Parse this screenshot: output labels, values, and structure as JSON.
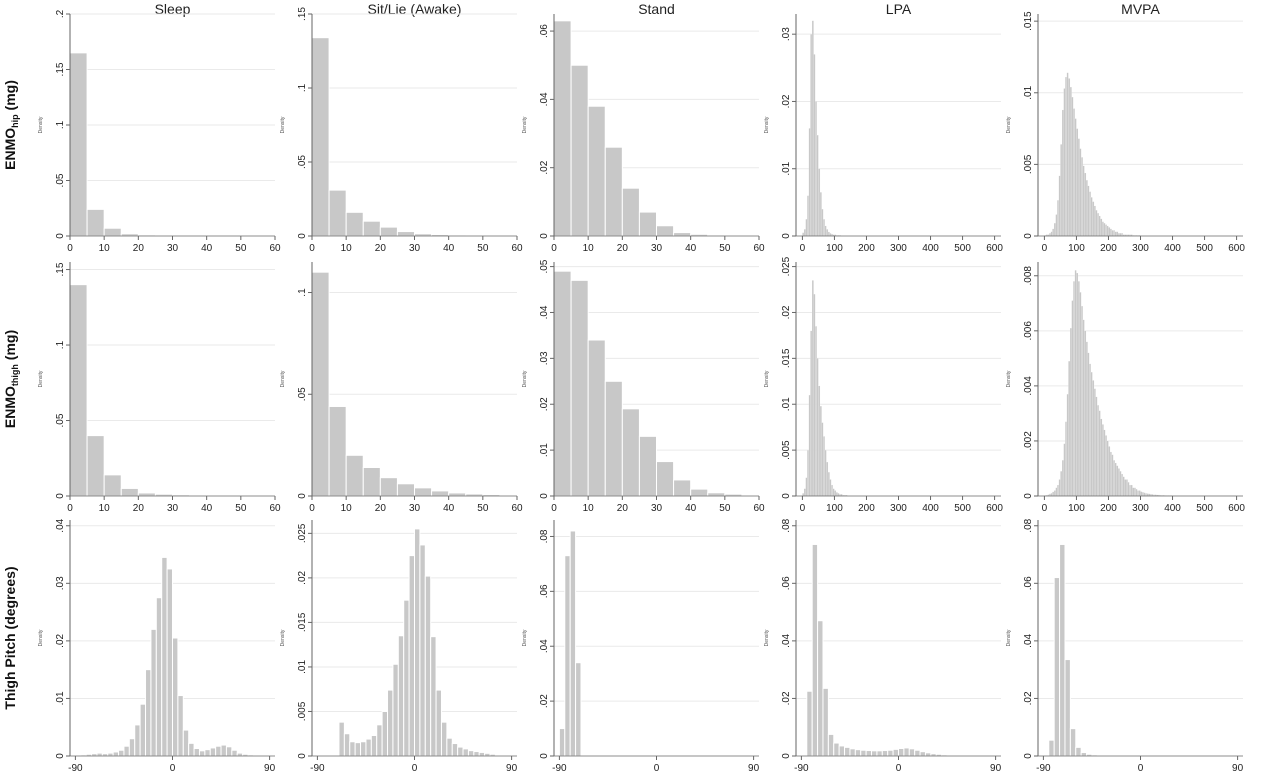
{
  "columns": [
    "Sleep",
    "Sit/Lie (Awake)",
    "Stand",
    "LPA",
    "MVPA"
  ],
  "rows": [
    {
      "label_main": "ENMO",
      "label_sub": "hip",
      "label_unit": " (mg)"
    },
    {
      "label_main": "ENMO",
      "label_sub": "thigh",
      "label_unit": " (mg)"
    },
    {
      "label_main": "Thigh Pitch (degrees)",
      "label_sub": "",
      "label_unit": ""
    }
  ],
  "density_label": "Density",
  "colors": {
    "bar": "#c8c8c8",
    "bar_edge": "#ffffff",
    "grid": "#eaeaea",
    "axis": "#666666"
  },
  "chart_data": [
    {
      "type": "bar",
      "row": 0,
      "col": 0,
      "xlim": [
        0,
        60
      ],
      "xticks": [
        "0",
        "10",
        "20",
        "30",
        "40",
        "50",
        "60"
      ],
      "ylim": [
        0,
        0.2
      ],
      "yticks": [
        "0",
        ".05",
        ".1",
        ".15",
        ".2"
      ],
      "bins": {
        "start": 0,
        "width": 5,
        "values": [
          0.165,
          0.024,
          0.007,
          0.002,
          0.001,
          0.0005,
          0.0004,
          0.0003,
          0.0002,
          0.0002,
          0.0001,
          0.0001
        ]
      }
    },
    {
      "type": "bar",
      "row": 0,
      "col": 1,
      "xlim": [
        0,
        60
      ],
      "xticks": [
        "0",
        "10",
        "20",
        "30",
        "40",
        "50",
        "60"
      ],
      "ylim": [
        0,
        0.15
      ],
      "yticks": [
        "0",
        ".05",
        ".1",
        ".15"
      ],
      "bins": {
        "start": 0,
        "width": 5,
        "values": [
          0.134,
          0.031,
          0.016,
          0.01,
          0.006,
          0.003,
          0.0015,
          0.001,
          0.0007,
          0.0005,
          0.0003,
          0.0002
        ]
      }
    },
    {
      "type": "bar",
      "row": 0,
      "col": 2,
      "xlim": [
        0,
        60
      ],
      "xticks": [
        "0",
        "10",
        "20",
        "30",
        "40",
        "50",
        "60"
      ],
      "ylim": [
        0,
        0.065
      ],
      "yticks": [
        "0",
        ".02",
        ".04",
        ".06"
      ],
      "bins": {
        "start": 0,
        "width": 5,
        "values": [
          0.063,
          0.05,
          0.038,
          0.026,
          0.014,
          0.007,
          0.003,
          0.001,
          0.0005,
          0.0003,
          0.0002,
          0.0001
        ]
      }
    },
    {
      "type": "bar",
      "row": 0,
      "col": 3,
      "xlim": [
        -20,
        620
      ],
      "xticks": [
        "0",
        "100",
        "200",
        "300",
        "400",
        "500",
        "600"
      ],
      "ylim": [
        0,
        0.033
      ],
      "yticks": [
        "0",
        ".01",
        ".02",
        ".03"
      ],
      "bins": {
        "start": 0,
        "width": 5,
        "values": [
          0.0005,
          0.001,
          0.0025,
          0.006,
          0.016,
          0.03,
          0.032,
          0.027,
          0.02,
          0.015,
          0.01,
          0.0065,
          0.004,
          0.0025,
          0.0015,
          0.001,
          0.0006,
          0.0004,
          0.0003,
          0.0002,
          0.0002,
          0.0001,
          0.0001,
          0.0001
        ]
      }
    },
    {
      "type": "bar",
      "row": 0,
      "col": 4,
      "xlim": [
        -20,
        620
      ],
      "xticks": [
        "0",
        "100",
        "200",
        "300",
        "400",
        "500",
        "600"
      ],
      "ylim": [
        0,
        0.0155
      ],
      "yticks": [
        "0",
        ".005",
        ".01",
        ".015"
      ],
      "bins": {
        "start": 0,
        "width": 5,
        "values": [
          5e-05,
          0.0001,
          0.0001,
          0.0002,
          0.0003,
          0.0005,
          0.0009,
          0.0015,
          0.0025,
          0.0042,
          0.0064,
          0.0088,
          0.0103,
          0.0111,
          0.0114,
          0.011,
          0.0104,
          0.0097,
          0.0089,
          0.0082,
          0.0075,
          0.0068,
          0.0061,
          0.0055,
          0.0049,
          0.0044,
          0.0039,
          0.0035,
          0.0031,
          0.0027,
          0.0024,
          0.0021,
          0.0018,
          0.0016,
          0.0014,
          0.0012,
          0.001,
          0.0009,
          0.0008,
          0.0007,
          0.0006,
          0.0005,
          0.0004,
          0.0004,
          0.0003,
          0.0003,
          0.0002,
          0.0002,
          0.0002,
          0.0001,
          0.0001,
          0.0001,
          0.0001,
          0.0001,
          0.0001,
          5e-05,
          5e-05,
          5e-05,
          5e-05,
          5e-05
        ]
      }
    },
    {
      "type": "bar",
      "row": 1,
      "col": 0,
      "xlim": [
        0,
        60
      ],
      "xticks": [
        "0",
        "10",
        "20",
        "30",
        "40",
        "50",
        "60"
      ],
      "ylim": [
        0,
        0.155
      ],
      "yticks": [
        "0",
        ".05",
        ".1",
        ".15"
      ],
      "bins": {
        "start": 0,
        "width": 5,
        "values": [
          0.14,
          0.04,
          0.014,
          0.005,
          0.002,
          0.0012,
          0.0008,
          0.0005,
          0.0004,
          0.0003,
          0.0002,
          0.0001
        ]
      }
    },
    {
      "type": "bar",
      "row": 1,
      "col": 1,
      "xlim": [
        0,
        60
      ],
      "xticks": [
        "0",
        "10",
        "20",
        "30",
        "40",
        "50",
        "60"
      ],
      "ylim": [
        0,
        0.115
      ],
      "yticks": [
        "0",
        ".05",
        ".1"
      ],
      "bins": {
        "start": 0,
        "width": 5,
        "values": [
          0.11,
          0.044,
          0.02,
          0.014,
          0.009,
          0.006,
          0.004,
          0.0025,
          0.0015,
          0.001,
          0.0007,
          0.0004
        ]
      }
    },
    {
      "type": "bar",
      "row": 1,
      "col": 2,
      "xlim": [
        0,
        60
      ],
      "xticks": [
        "0",
        "10",
        "20",
        "30",
        "40",
        "50",
        "60"
      ],
      "ylim": [
        0,
        0.051
      ],
      "yticks": [
        "0",
        ".01",
        ".02",
        ".03",
        ".04",
        ".05"
      ],
      "bins": {
        "start": 0,
        "width": 5,
        "values": [
          0.049,
          0.047,
          0.034,
          0.025,
          0.019,
          0.013,
          0.0075,
          0.0035,
          0.0015,
          0.0007,
          0.0004,
          0.0002
        ]
      }
    },
    {
      "type": "bar",
      "row": 1,
      "col": 3,
      "xlim": [
        -20,
        620
      ],
      "xticks": [
        "0",
        "100",
        "200",
        "300",
        "400",
        "500",
        "600"
      ],
      "ylim": [
        0,
        0.0255
      ],
      "yticks": [
        "0",
        ".005",
        ".01",
        ".015",
        ".02",
        ".025"
      ],
      "bins": {
        "start": 0,
        "width": 5,
        "values": [
          0.0003,
          0.0008,
          0.002,
          0.005,
          0.011,
          0.018,
          0.0235,
          0.022,
          0.0185,
          0.015,
          0.012,
          0.0098,
          0.008,
          0.0065,
          0.005,
          0.0037,
          0.0026,
          0.0018,
          0.0012,
          0.0008,
          0.0006,
          0.0004,
          0.0003,
          0.0002,
          0.0002,
          0.0001,
          0.0001,
          0.0001
        ]
      }
    },
    {
      "type": "bar",
      "row": 1,
      "col": 4,
      "xlim": [
        -20,
        620
      ],
      "xticks": [
        "0",
        "100",
        "200",
        "300",
        "400",
        "500",
        "600"
      ],
      "ylim": [
        0,
        0.0085
      ],
      "yticks": [
        "0",
        ".002",
        ".004",
        ".006",
        ".008"
      ],
      "bins": {
        "start": 0,
        "width": 5,
        "values": [
          2e-05,
          3e-05,
          5e-05,
          8e-05,
          0.0001,
          0.00015,
          0.0002,
          0.0003,
          0.0004,
          0.0006,
          0.0009,
          0.0013,
          0.0019,
          0.0027,
          0.0037,
          0.0049,
          0.0061,
          0.0071,
          0.0078,
          0.0082,
          0.0081,
          0.0078,
          0.0074,
          0.0069,
          0.0064,
          0.006,
          0.0056,
          0.0052,
          0.0048,
          0.0045,
          0.0042,
          0.0039,
          0.0036,
          0.0033,
          0.0031,
          0.0028,
          0.0026,
          0.0024,
          0.0022,
          0.002,
          0.0018,
          0.0016,
          0.0015,
          0.0013,
          0.0012,
          0.0011,
          0.001,
          0.0009,
          0.0008,
          0.0007,
          0.0006,
          0.0006,
          0.0005,
          0.0004,
          0.0004,
          0.0003,
          0.0003,
          0.00025,
          0.0002,
          0.0002,
          0.00016,
          0.00014,
          0.00012,
          0.0001,
          9e-05,
          8e-05,
          7e-05,
          6e-05,
          5e-05,
          5e-05,
          4e-05,
          4e-05,
          3e-05,
          3e-05,
          3e-05,
          2e-05,
          2e-05,
          2e-05,
          2e-05,
          2e-05,
          1e-05,
          1e-05,
          1e-05,
          1e-05,
          1e-05,
          1e-05,
          1e-05,
          1e-05,
          1e-05,
          1e-05,
          1e-05,
          1e-05,
          1e-05,
          1e-05,
          1e-05,
          1e-05,
          1e-05,
          1e-05,
          1e-05,
          1e-05,
          1e-05,
          1e-05,
          1e-05,
          1e-05,
          1e-05,
          1e-05,
          1e-05,
          1e-05,
          1e-05,
          1e-05,
          1e-05,
          1e-05,
          1e-05,
          1e-05,
          1e-05,
          1e-05,
          1e-05,
          1e-05,
          1e-05,
          1e-05
        ]
      }
    },
    {
      "type": "bar",
      "row": 2,
      "col": 0,
      "xlim": [
        -95,
        95
      ],
      "xticks": [
        "-90",
        "0",
        "90"
      ],
      "ylim": [
        0,
        0.041
      ],
      "yticks": [
        "0",
        ".01",
        ".02",
        ".03",
        ".04"
      ],
      "bins": {
        "start": -90,
        "width": 5,
        "values": [
          0.0001,
          0.0002,
          0.0003,
          0.0004,
          0.0005,
          0.0004,
          0.0005,
          0.0007,
          0.001,
          0.0017,
          0.003,
          0.0054,
          0.009,
          0.015,
          0.022,
          0.0275,
          0.0345,
          0.0325,
          0.0205,
          0.0105,
          0.0045,
          0.0022,
          0.0013,
          0.0009,
          0.0011,
          0.0014,
          0.0017,
          0.0019,
          0.0016,
          0.001,
          0.0005,
          0.0003,
          0.0002,
          0.0001,
          0.0001,
          0.0001
        ]
      }
    },
    {
      "type": "bar",
      "row": 2,
      "col": 1,
      "xlim": [
        -95,
        95
      ],
      "xticks": [
        "-90",
        "0",
        "90"
      ],
      "ylim": [
        0,
        0.0265
      ],
      "yticks": [
        "0",
        ".005",
        ".01",
        ".015",
        ".02",
        ".025"
      ],
      "bins": {
        "start": -70,
        "width": 5,
        "values": [
          0.0038,
          0.0025,
          0.0016,
          0.0015,
          0.0016,
          0.0019,
          0.0023,
          0.0035,
          0.005,
          0.0074,
          0.0103,
          0.0135,
          0.0175,
          0.0225,
          0.0255,
          0.0237,
          0.0202,
          0.0134,
          0.0074,
          0.0038,
          0.002,
          0.0014,
          0.001,
          0.0008,
          0.0006,
          0.0005,
          0.0004,
          0.0003,
          0.0002,
          0.0001,
          0.0001,
          0.0001,
          0.0001
        ]
      }
    },
    {
      "type": "bar",
      "row": 2,
      "col": 2,
      "xlim": [
        -95,
        95
      ],
      "xticks": [
        "-90",
        "0",
        "90"
      ],
      "ylim": [
        0,
        0.086
      ],
      "yticks": [
        "0",
        ".02",
        ".04",
        ".06",
        ".08"
      ],
      "bins": {
        "start": -90,
        "width": 5,
        "values": [
          0.01,
          0.073,
          0.082,
          0.034
        ]
      }
    },
    {
      "type": "bar",
      "row": 2,
      "col": 3,
      "xlim": [
        -95,
        95
      ],
      "xticks": [
        "-90",
        "0",
        "90"
      ],
      "ylim": [
        0,
        0.082
      ],
      "yticks": [
        "0",
        ".02",
        ".04",
        ".06",
        ".08"
      ],
      "bins": {
        "start": -85,
        "width": 5,
        "values": [
          0.0225,
          0.0735,
          0.047,
          0.0235,
          0.0075,
          0.0045,
          0.0035,
          0.003,
          0.0025,
          0.0022,
          0.002,
          0.0019,
          0.0018,
          0.0018,
          0.0019,
          0.002,
          0.0023,
          0.0026,
          0.0028,
          0.0025,
          0.002,
          0.0015,
          0.0011,
          0.0008,
          0.0006,
          0.0004,
          0.0003,
          0.0002,
          0.0002,
          0.0001,
          0.0001,
          0.0001,
          0.0001,
          0.0001
        ]
      }
    },
    {
      "type": "bar",
      "row": 2,
      "col": 4,
      "xlim": [
        -95,
        95
      ],
      "xticks": [
        "-90",
        "0",
        "90"
      ],
      "ylim": [
        0,
        0.082
      ],
      "yticks": [
        "0",
        ".02",
        ".04",
        ".06",
        ".08"
      ],
      "bins": {
        "start": -85,
        "width": 5,
        "values": [
          0.0055,
          0.062,
          0.0735,
          0.0335,
          0.0095,
          0.003,
          0.0012,
          0.0006,
          0.0004,
          0.0003,
          0.0002,
          0.0002,
          0.0001,
          0.0001,
          0.0001,
          0.0001,
          0.0001,
          0.0001,
          0.0001,
          0.0001,
          0.0001,
          0.0001,
          0.0001,
          0.0001,
          0.0001,
          0.0001,
          0.0001,
          0.0001,
          0.0001,
          0.0001,
          0.0001,
          0.0001,
          0.0001,
          0.0001,
          0.0001
        ]
      }
    }
  ]
}
